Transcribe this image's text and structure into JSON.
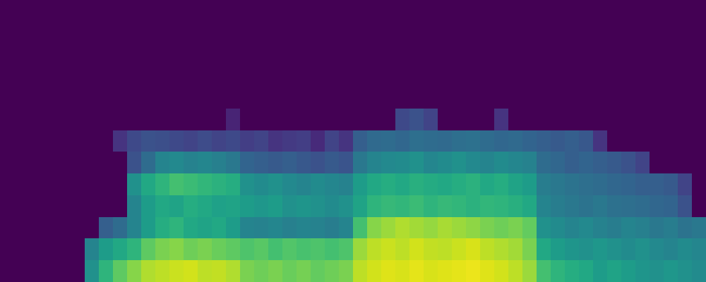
{
  "chart_data": {
    "type": "heatmap",
    "tick_labels": false,
    "color": "viridis",
    "zlim": [
      0,
      1
    ],
    "z": [
      [
        0,
        0,
        0,
        0,
        0,
        0,
        0,
        0,
        0,
        0,
        0,
        0,
        0,
        0,
        0,
        0,
        0,
        0,
        0,
        0,
        0,
        0,
        0,
        0,
        0,
        0,
        0,
        0,
        0,
        0,
        0,
        0,
        0,
        0,
        0,
        0,
        0,
        0,
        0,
        0,
        0,
        0,
        0,
        0,
        0,
        0,
        0,
        0,
        0,
        0
      ],
      [
        0,
        0,
        0,
        0,
        0,
        0,
        0,
        0,
        0,
        0,
        0,
        0,
        0,
        0,
        0,
        0,
        0,
        0,
        0,
        0,
        0,
        0,
        0,
        0,
        0,
        0,
        0,
        0,
        0,
        0,
        0,
        0,
        0,
        0,
        0,
        0,
        0,
        0,
        0,
        0,
        0,
        0,
        0,
        0,
        0,
        0,
        0,
        0,
        0,
        0
      ],
      [
        0,
        0,
        0,
        0,
        0,
        0,
        0,
        0,
        0,
        0,
        0,
        0,
        0,
        0,
        0,
        0,
        0,
        0,
        0,
        0,
        0,
        0,
        0,
        0,
        0,
        0,
        0,
        0,
        0,
        0,
        0,
        0,
        0,
        0,
        0,
        0,
        0,
        0,
        0,
        0,
        0,
        0,
        0,
        0,
        0,
        0,
        0,
        0,
        0,
        0
      ],
      [
        0,
        0,
        0,
        0,
        0,
        0,
        0,
        0,
        0,
        0,
        0,
        0,
        0,
        0,
        0,
        0,
        0,
        0,
        0,
        0,
        0,
        0,
        0,
        0,
        0,
        0,
        0,
        0,
        0,
        0,
        0,
        0,
        0,
        0,
        0,
        0,
        0,
        0,
        0,
        0,
        0,
        0,
        0,
        0,
        0,
        0,
        0,
        0,
        0,
        0
      ],
      [
        0,
        0,
        0,
        0,
        0,
        0,
        0,
        0,
        0,
        0,
        0,
        0,
        0,
        0,
        0,
        0,
        0,
        0,
        0,
        0,
        0,
        0,
        0,
        0,
        0,
        0,
        0,
        0,
        0,
        0,
        0,
        0,
        0,
        0,
        0,
        0,
        0,
        0,
        0,
        0,
        0,
        0,
        0,
        0,
        0,
        0,
        0,
        0,
        0,
        0
      ],
      [
        0,
        0,
        0,
        0,
        0,
        0,
        0,
        0,
        0,
        0,
        0,
        0,
        0,
        0,
        0,
        0,
        0.1,
        0,
        0,
        0,
        0,
        0,
        0,
        0,
        0,
        0,
        0,
        0,
        0.22,
        0.25,
        0.2,
        0,
        0,
        0,
        0,
        0.15,
        0,
        0,
        0,
        0,
        0,
        0,
        0,
        0,
        0,
        0,
        0,
        0,
        0,
        0
      ],
      [
        0,
        0,
        0,
        0,
        0,
        0,
        0,
        0,
        0.15,
        0.22,
        0.25,
        0.24,
        0.22,
        0.2,
        0.23,
        0.2,
        0.22,
        0.18,
        0.2,
        0.15,
        0.17,
        0.18,
        0.12,
        0.2,
        0.15,
        0.3,
        0.34,
        0.35,
        0.33,
        0.36,
        0.35,
        0.34,
        0.36,
        0.37,
        0.35,
        0.33,
        0.34,
        0.32,
        0.3,
        0.28,
        0.3,
        0.27,
        0.15,
        0,
        0,
        0,
        0,
        0,
        0,
        0
      ],
      [
        0,
        0,
        0,
        0,
        0,
        0,
        0,
        0,
        0,
        0.25,
        0.35,
        0.45,
        0.47,
        0.44,
        0.46,
        0.43,
        0.4,
        0.32,
        0.3,
        0.28,
        0.3,
        0.27,
        0.25,
        0.28,
        0.26,
        0.4,
        0.45,
        0.47,
        0.48,
        0.5,
        0.46,
        0.48,
        0.5,
        0.47,
        0.45,
        0.48,
        0.46,
        0.44,
        0.35,
        0.33,
        0.3,
        0.32,
        0.3,
        0.28,
        0.25,
        0.2,
        0,
        0,
        0,
        0
      ],
      [
        0,
        0,
        0,
        0,
        0,
        0,
        0,
        0,
        0,
        0.5,
        0.6,
        0.65,
        0.7,
        0.68,
        0.66,
        0.64,
        0.62,
        0.5,
        0.48,
        0.5,
        0.47,
        0.45,
        0.48,
        0.46,
        0.44,
        0.55,
        0.6,
        0.62,
        0.6,
        0.63,
        0.61,
        0.6,
        0.62,
        0.64,
        0.6,
        0.62,
        0.58,
        0.55,
        0.42,
        0.4,
        0.38,
        0.36,
        0.35,
        0.33,
        0.32,
        0.3,
        0.3,
        0.28,
        0.2,
        0
      ],
      [
        0,
        0,
        0,
        0,
        0,
        0,
        0,
        0,
        0,
        0.45,
        0.55,
        0.6,
        0.58,
        0.62,
        0.6,
        0.57,
        0.58,
        0.55,
        0.53,
        0.55,
        0.5,
        0.52,
        0.5,
        0.48,
        0.5,
        0.58,
        0.65,
        0.67,
        0.66,
        0.68,
        0.65,
        0.67,
        0.66,
        0.64,
        0.66,
        0.65,
        0.63,
        0.6,
        0.45,
        0.42,
        0.4,
        0.38,
        0.4,
        0.37,
        0.36,
        0.35,
        0.33,
        0.32,
        0.25,
        0
      ],
      [
        0,
        0,
        0,
        0,
        0,
        0,
        0,
        0.3,
        0.35,
        0.45,
        0.55,
        0.62,
        0.65,
        0.6,
        0.58,
        0.6,
        0.55,
        0.45,
        0.44,
        0.46,
        0.43,
        0.45,
        0.44,
        0.42,
        0.45,
        0.7,
        0.82,
        0.85,
        0.88,
        0.86,
        0.84,
        0.87,
        0.85,
        0.83,
        0.8,
        0.78,
        0.8,
        0.76,
        0.5,
        0.48,
        0.45,
        0.47,
        0.44,
        0.42,
        0.45,
        0.43,
        0.4,
        0.42,
        0.38,
        0.4
      ],
      [
        0,
        0,
        0,
        0,
        0,
        0,
        0.45,
        0.55,
        0.6,
        0.65,
        0.75,
        0.8,
        0.82,
        0.78,
        0.8,
        0.77,
        0.75,
        0.72,
        0.74,
        0.7,
        0.73,
        0.71,
        0.72,
        0.7,
        0.72,
        0.85,
        0.9,
        0.92,
        0.9,
        0.93,
        0.91,
        0.9,
        0.92,
        0.94,
        0.9,
        0.88,
        0.86,
        0.8,
        0.6,
        0.55,
        0.52,
        0.5,
        0.53,
        0.5,
        0.48,
        0.5,
        0.47,
        0.45,
        0.48,
        0.46
      ],
      [
        0,
        0,
        0,
        0,
        0,
        0,
        0.5,
        0.65,
        0.75,
        0.82,
        0.88,
        0.9,
        0.92,
        0.93,
        0.9,
        0.91,
        0.88,
        0.8,
        0.78,
        0.8,
        0.77,
        0.79,
        0.76,
        0.78,
        0.8,
        0.9,
        0.93,
        0.95,
        0.94,
        0.96,
        0.94,
        0.95,
        0.96,
        0.97,
        0.95,
        0.93,
        0.9,
        0.85,
        0.7,
        0.65,
        0.62,
        0.6,
        0.55,
        0.58,
        0.55,
        0.52,
        0.5,
        0.53,
        0.5,
        0.48
      ]
    ]
  }
}
